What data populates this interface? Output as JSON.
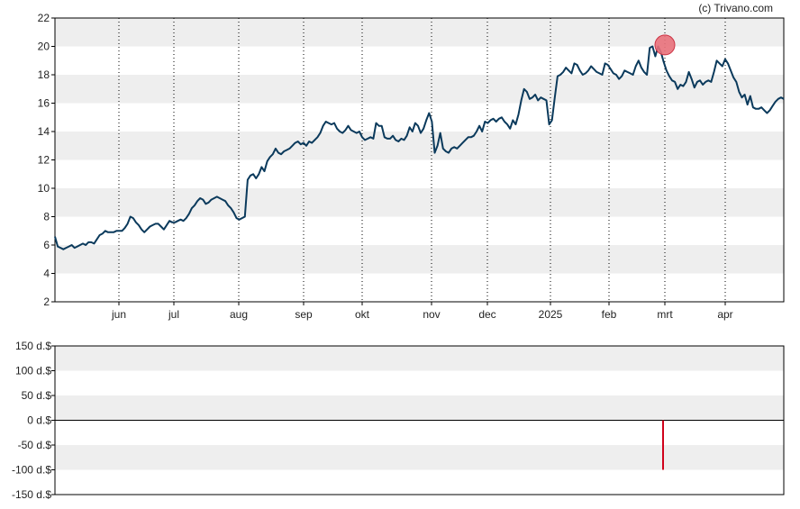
{
  "copyright": "(c) Trivano.com",
  "colors": {
    "line": "#0b3a5c",
    "band": "#eeeeee",
    "marker": "#e8707a",
    "bar": "#d0021b"
  },
  "chart_data": [
    {
      "type": "line",
      "title": "",
      "xlabel": "",
      "ylabel": "",
      "ylim": [
        2,
        22
      ],
      "yticks": [
        "2",
        "4",
        "6",
        "8",
        "10",
        "12",
        "14",
        "16",
        "18",
        "20",
        "22"
      ],
      "xticks": [
        "jun",
        "jul",
        "aug",
        "sep",
        "okt",
        "nov",
        "dec",
        "2025",
        "feb",
        "mrt",
        "apr"
      ],
      "grid": "dotted vertical at month boundaries, alternating horizontal bands",
      "marker": {
        "x": "mrt",
        "y": 20.1,
        "shape": "circle"
      },
      "series": [
        {
          "values": [
            6.6,
            5.9,
            5.8,
            5.7,
            5.8,
            5.9,
            6.0,
            5.8,
            5.9,
            6.0,
            6.1,
            6.0,
            6.2,
            6.2,
            6.1,
            6.4,
            6.7,
            6.8,
            7.0,
            6.9,
            6.9,
            6.9,
            7.0,
            7.0,
            7.0,
            7.2,
            7.5,
            8.0,
            7.9,
            7.6,
            7.4,
            7.1,
            6.9,
            7.1,
            7.3,
            7.4,
            7.5,
            7.5,
            7.3,
            7.1,
            7.4,
            7.7,
            7.6,
            7.6,
            7.7,
            7.8,
            7.7,
            7.9,
            8.2,
            8.6,
            8.8,
            9.1,
            9.3,
            9.2,
            8.9,
            9.0,
            9.2,
            9.3,
            9.4,
            9.3,
            9.2,
            9.1,
            8.8,
            8.6,
            8.3,
            7.9,
            7.8,
            7.9,
            8.0,
            10.6,
            10.9,
            11.0,
            10.7,
            11.0,
            11.5,
            11.2,
            11.9,
            12.2,
            12.4,
            12.8,
            12.5,
            12.4,
            12.6,
            12.7,
            12.8,
            13.0,
            13.2,
            13.3,
            13.1,
            13.2,
            13.0,
            13.3,
            13.2,
            13.4,
            13.6,
            13.9,
            14.4,
            14.7,
            14.6,
            14.5,
            14.6,
            14.2,
            14.0,
            13.9,
            14.1,
            14.4,
            14.1,
            14.0,
            13.9,
            14.0,
            13.6,
            13.4,
            13.5,
            13.6,
            13.5,
            14.6,
            14.4,
            14.4,
            13.6,
            13.5,
            13.5,
            13.7,
            13.4,
            13.3,
            13.5,
            13.4,
            13.7,
            14.3,
            14.0,
            14.6,
            14.4,
            13.9,
            14.2,
            14.8,
            15.3,
            14.7,
            12.5,
            13.0,
            13.9,
            12.8,
            12.6,
            12.5,
            12.8,
            12.9,
            12.8,
            13.0,
            13.2,
            13.4,
            13.6,
            13.6,
            13.7,
            14.0,
            14.4,
            14.0,
            14.7,
            14.6,
            14.8,
            14.9,
            14.7,
            14.9,
            15.0,
            14.7,
            14.5,
            14.2,
            14.8,
            14.5,
            15.2,
            16.2,
            17.0,
            16.8,
            16.3,
            16.4,
            16.6,
            16.2,
            16.4,
            16.3,
            16.2,
            14.5,
            14.8,
            16.4,
            17.9,
            18.0,
            18.2,
            18.5,
            18.3,
            18.1,
            18.8,
            18.7,
            18.3,
            18.0,
            18.1,
            18.3,
            18.6,
            18.4,
            18.2,
            18.1,
            18.0,
            18.8,
            18.7,
            18.4,
            18.1,
            18.0,
            17.7,
            17.9,
            18.3,
            18.2,
            18.1,
            18.0,
            18.6,
            19.0,
            18.5,
            18.2,
            18.0,
            19.9,
            20.0,
            19.3,
            20.0,
            19.6,
            18.9,
            18.3,
            17.9,
            17.6,
            17.5,
            17.0,
            17.3,
            17.2,
            17.5,
            18.2,
            17.7,
            17.1,
            17.5,
            17.6,
            17.3,
            17.5,
            17.6,
            17.5,
            18.2,
            19.0,
            18.8,
            18.6,
            19.1,
            18.8,
            18.3,
            17.8,
            17.5,
            16.8,
            16.4,
            16.6,
            15.9,
            16.5,
            15.7,
            15.6,
            15.6,
            15.7,
            15.5,
            15.3,
            15.5,
            15.8,
            16.1,
            16.3,
            16.4,
            16.3
          ]
        }
      ]
    },
    {
      "type": "bar",
      "title": "",
      "ylim": [
        -150,
        150
      ],
      "yticks": [
        "150 d.$",
        "100 d.$",
        "50 d.$",
        "0 d.$",
        "-50 d.$",
        "-100 d.$",
        "-150 d.$"
      ],
      "bars": [
        {
          "x": "mrt",
          "value": -100
        }
      ]
    }
  ]
}
